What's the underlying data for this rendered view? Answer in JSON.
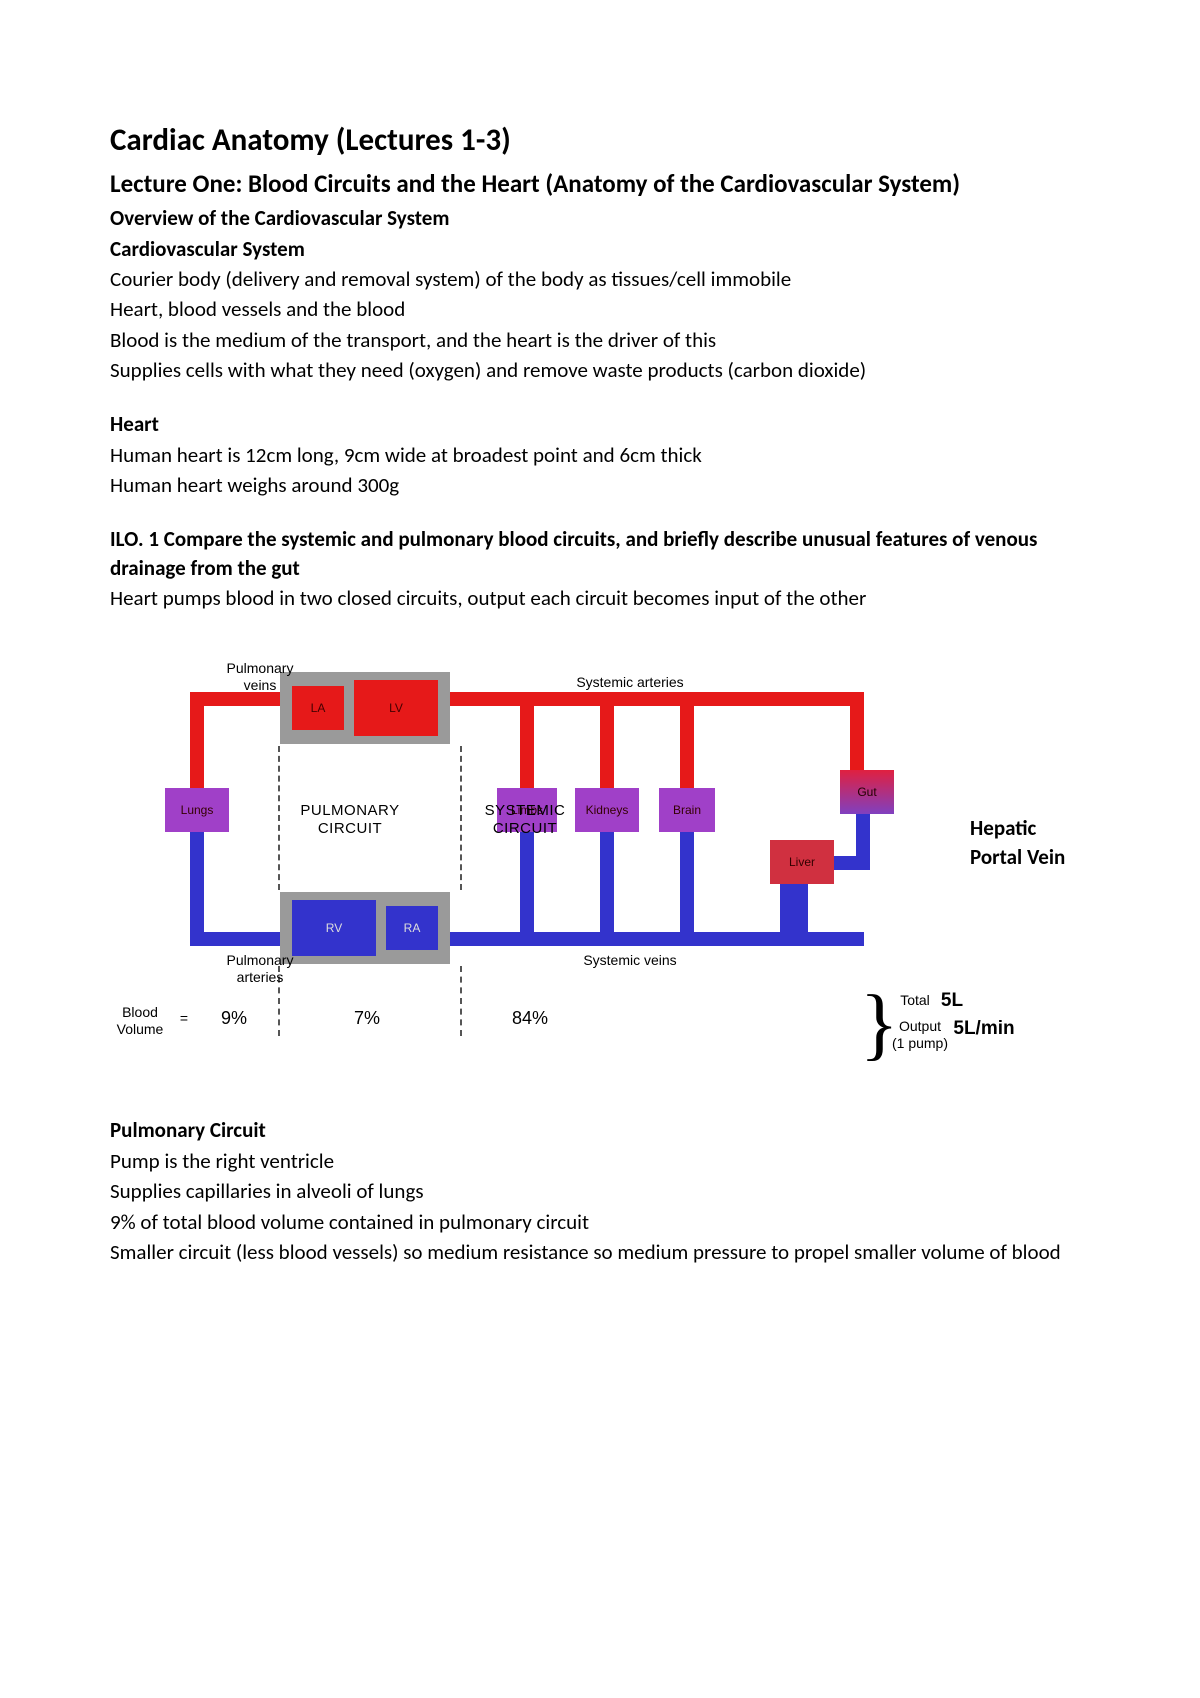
{
  "doc": {
    "title": "Cardiac Anatomy (Lectures 1-3)",
    "subtitle": "Lecture One: Blood Circuits and the Heart (Anatomy of the Cardiovascular System)",
    "section1_title": "Overview of the Cardiovascular System",
    "section1a_title": "Cardiovascular System",
    "p1": "Courier body (delivery and removal system) of the body as tissues/cell immobile",
    "p2": "Heart, blood vessels and the blood",
    "p3": "Blood is the medium of the transport, and the heart is the driver of this",
    "p4": "Supplies cells with what they need (oxygen) and remove waste products (carbon dioxide)",
    "heart_title": "Heart",
    "heart_p1": "Human heart is 12cm long, 9cm wide at broadest point and 6cm thick",
    "heart_p2": "Human heart weighs around 300g",
    "ilo_title": "ILO. 1 Compare the systemic and pulmonary blood circuits, and briefly describe unusual features of venous drainage from the gut",
    "ilo_p1": "Heart pumps blood in two closed circuits, output each circuit becomes input of the other",
    "pulm_title": "Pulmonary Circuit",
    "pulm_p1": "Pump is the right ventricle",
    "pulm_p2": "Supplies capillaries in alveoli of lungs",
    "pulm_p3": "9% of total blood volume contained in pulmonary circuit",
    "pulm_p4": "Smaller circuit (less blood vessels) so medium resistance so medium pressure to propel smaller volume of blood"
  },
  "diagram": {
    "colors": {
      "red": "#e61919",
      "blue": "#3333cc",
      "grey": "#9a9a9a",
      "purple": "#a040c8",
      "purple_red": "#c04080",
      "gut_top": "#e02040",
      "gut_bot": "#8040c0",
      "liver": "#d03040",
      "pipe_w": 14
    },
    "labels": {
      "pulm_veins": "Pulmonary\nveins",
      "sys_arteries": "Systemic arteries",
      "pulm_arteries": "Pulmonary\narteries",
      "sys_veins": "Systemic veins",
      "pulm_circuit": "PULMONARY\nCIRCUIT",
      "sys_circuit": "SYSTEMIC\nCIRCUIT",
      "la": "LA",
      "lv": "LV",
      "rv": "RV",
      "ra": "RA",
      "lungs": "Lungs",
      "limbs": "Limbs",
      "kidneys": "Kidneys",
      "brain": "Brain",
      "gut": "Gut",
      "liver": "Liver",
      "blood_volume": "Blood\nVolume",
      "equals": "=",
      "pct_9": "9%",
      "pct_7": "7%",
      "pct_84": "84%",
      "total": "Total",
      "total_val": "5L",
      "output": "Output\n(1 pump)",
      "output_val": "5L/min"
    },
    "ext_label": "Hepatic Portal Vein"
  }
}
